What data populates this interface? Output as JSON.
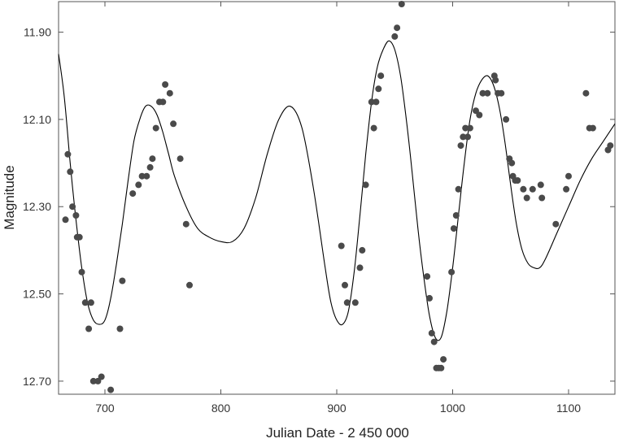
{
  "chart_data": {
    "type": "scatter",
    "title": "",
    "xlabel": "Julian Date - 2 450 000",
    "ylabel": "Magnitude",
    "xlim": [
      660,
      1140
    ],
    "ylim": [
      12.73,
      11.83
    ],
    "y_inverted": true,
    "xticks": [
      700,
      800,
      900,
      1000,
      1100
    ],
    "yticks": [
      11.9,
      12.1,
      12.3,
      12.5,
      12.7
    ],
    "xtick_labels": [
      "700",
      "800",
      "900",
      "1000",
      "1100"
    ],
    "ytick_labels": [
      "11.90",
      "12.10",
      "12.30",
      "12.50",
      "12.70"
    ],
    "grid": false,
    "legend": "none",
    "colors": {
      "points": "#4a4a4a",
      "curve": "#000000",
      "frame": "#555555"
    },
    "series": [
      {
        "kind": "points",
        "points": [
          [
            666,
            12.33
          ],
          [
            668,
            12.18
          ],
          [
            670,
            12.22
          ],
          [
            672,
            12.3
          ],
          [
            675,
            12.32
          ],
          [
            676,
            12.37
          ],
          [
            678,
            12.37
          ],
          [
            680,
            12.45
          ],
          [
            683,
            12.52
          ],
          [
            686,
            12.58
          ],
          [
            688,
            12.52
          ],
          [
            690,
            12.7
          ],
          [
            694,
            12.7
          ],
          [
            697,
            12.69
          ],
          [
            705,
            12.72
          ],
          [
            713,
            12.58
          ],
          [
            715,
            12.47
          ],
          [
            724,
            12.27
          ],
          [
            729,
            12.25
          ],
          [
            732,
            12.23
          ],
          [
            736,
            12.23
          ],
          [
            739,
            12.21
          ],
          [
            741,
            12.19
          ],
          [
            744,
            12.12
          ],
          [
            747,
            12.06
          ],
          [
            750,
            12.06
          ],
          [
            752,
            12.02
          ],
          [
            756,
            12.04
          ],
          [
            759,
            12.11
          ],
          [
            765,
            12.19
          ],
          [
            770,
            12.34
          ],
          [
            773,
            12.48
          ],
          [
            904,
            12.39
          ],
          [
            907,
            12.48
          ],
          [
            909,
            12.52
          ],
          [
            916,
            12.52
          ],
          [
            920,
            12.44
          ],
          [
            922,
            12.4
          ],
          [
            925,
            12.25
          ],
          [
            930,
            12.06
          ],
          [
            932,
            12.12
          ],
          [
            934,
            12.06
          ],
          [
            936,
            12.03
          ],
          [
            938,
            12.0
          ],
          [
            950,
            11.91
          ],
          [
            952,
            11.89
          ],
          [
            956,
            11.83
          ],
          [
            978,
            12.46
          ],
          [
            980,
            12.51
          ],
          [
            982,
            12.59
          ],
          [
            984,
            12.61
          ],
          [
            986,
            12.67
          ],
          [
            988,
            12.67
          ],
          [
            990,
            12.67
          ],
          [
            992,
            12.65
          ],
          [
            999,
            12.45
          ],
          [
            1001,
            12.35
          ],
          [
            1003,
            12.32
          ],
          [
            1005,
            12.26
          ],
          [
            1007,
            12.16
          ],
          [
            1009,
            12.14
          ],
          [
            1011,
            12.12
          ],
          [
            1013,
            12.14
          ],
          [
            1015,
            12.12
          ],
          [
            1020,
            12.08
          ],
          [
            1023,
            12.09
          ],
          [
            1026,
            12.04
          ],
          [
            1030,
            12.04
          ],
          [
            1036,
            12.0
          ],
          [
            1037,
            12.01
          ],
          [
            1039,
            12.04
          ],
          [
            1042,
            12.04
          ],
          [
            1046,
            12.1
          ],
          [
            1049,
            12.19
          ],
          [
            1051,
            12.2
          ],
          [
            1052,
            12.23
          ],
          [
            1054,
            12.24
          ],
          [
            1056,
            12.24
          ],
          [
            1061,
            12.26
          ],
          [
            1064,
            12.28
          ],
          [
            1069,
            12.26
          ],
          [
            1076,
            12.25
          ],
          [
            1077,
            12.28
          ],
          [
            1089,
            12.34
          ],
          [
            1098,
            12.26
          ],
          [
            1100,
            12.23
          ],
          [
            1115,
            12.04
          ],
          [
            1118,
            12.12
          ],
          [
            1121,
            12.12
          ],
          [
            1134,
            12.17
          ],
          [
            1136,
            12.16
          ]
        ]
      },
      {
        "kind": "line",
        "points": [
          [
            660,
            11.95
          ],
          [
            665,
            12.05
          ],
          [
            670,
            12.2
          ],
          [
            675,
            12.33
          ],
          [
            680,
            12.44
          ],
          [
            685,
            12.52
          ],
          [
            690,
            12.56
          ],
          [
            695,
            12.57
          ],
          [
            700,
            12.56
          ],
          [
            705,
            12.51
          ],
          [
            710,
            12.43
          ],
          [
            715,
            12.34
          ],
          [
            720,
            12.24
          ],
          [
            725,
            12.15
          ],
          [
            730,
            12.1
          ],
          [
            735,
            12.07
          ],
          [
            740,
            12.07
          ],
          [
            745,
            12.09
          ],
          [
            750,
            12.13
          ],
          [
            755,
            12.18
          ],
          [
            760,
            12.23
          ],
          [
            770,
            12.3
          ],
          [
            780,
            12.35
          ],
          [
            790,
            12.37
          ],
          [
            800,
            12.38
          ],
          [
            810,
            12.38
          ],
          [
            820,
            12.35
          ],
          [
            830,
            12.28
          ],
          [
            840,
            12.18
          ],
          [
            850,
            12.1
          ],
          [
            860,
            12.07
          ],
          [
            870,
            12.12
          ],
          [
            880,
            12.26
          ],
          [
            890,
            12.44
          ],
          [
            895,
            12.52
          ],
          [
            900,
            12.56
          ],
          [
            905,
            12.57
          ],
          [
            910,
            12.54
          ],
          [
            915,
            12.45
          ],
          [
            920,
            12.32
          ],
          [
            925,
            12.18
          ],
          [
            930,
            12.06
          ],
          [
            935,
            11.98
          ],
          [
            940,
            11.94
          ],
          [
            945,
            11.92
          ],
          [
            950,
            11.94
          ],
          [
            955,
            12.0
          ],
          [
            960,
            12.1
          ],
          [
            965,
            12.22
          ],
          [
            970,
            12.35
          ],
          [
            975,
            12.46
          ],
          [
            980,
            12.55
          ],
          [
            985,
            12.6
          ],
          [
            990,
            12.6
          ],
          [
            995,
            12.54
          ],
          [
            1000,
            12.44
          ],
          [
            1005,
            12.32
          ],
          [
            1010,
            12.2
          ],
          [
            1015,
            12.1
          ],
          [
            1020,
            12.04
          ],
          [
            1025,
            12.01
          ],
          [
            1030,
            12.0
          ],
          [
            1035,
            12.02
          ],
          [
            1040,
            12.07
          ],
          [
            1045,
            12.15
          ],
          [
            1050,
            12.25
          ],
          [
            1055,
            12.34
          ],
          [
            1060,
            12.4
          ],
          [
            1065,
            12.43
          ],
          [
            1070,
            12.44
          ],
          [
            1075,
            12.44
          ],
          [
            1080,
            12.42
          ],
          [
            1090,
            12.36
          ],
          [
            1100,
            12.3
          ],
          [
            1110,
            12.24
          ],
          [
            1120,
            12.19
          ],
          [
            1130,
            12.15
          ],
          [
            1140,
            12.11
          ]
        ]
      }
    ]
  }
}
